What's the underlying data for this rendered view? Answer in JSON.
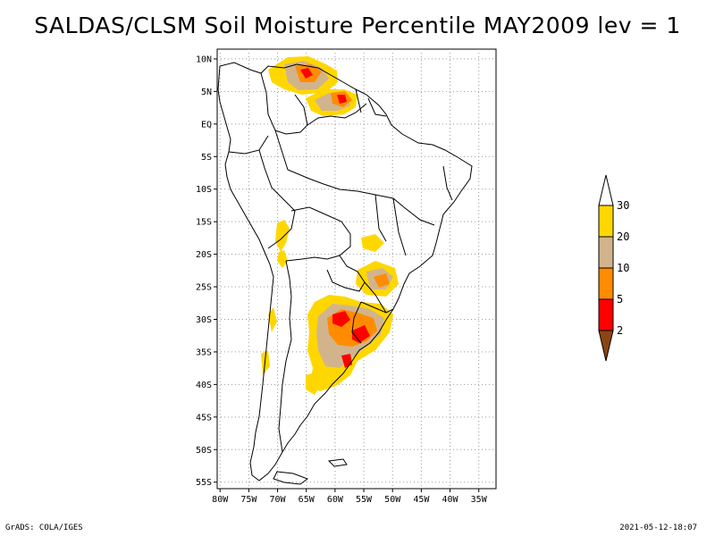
{
  "title": "SALDAS/CLSM Soil Moisture Percentile MAY2009 lev = 1",
  "footer": {
    "left": "GrADS: COLA/IGES",
    "right": "2021-05-12-18:07"
  },
  "map": {
    "lon_range": [
      -80.5,
      -32
    ],
    "lat_range": [
      -56,
      11.5
    ],
    "lat_labels": [
      {
        "lat": 10,
        "label": "10N"
      },
      {
        "lat": 5,
        "label": "5N"
      },
      {
        "lat": 0,
        "label": "EQ"
      },
      {
        "lat": -5,
        "label": "5S"
      },
      {
        "lat": -10,
        "label": "10S"
      },
      {
        "lat": -15,
        "label": "15S"
      },
      {
        "lat": -20,
        "label": "20S"
      },
      {
        "lat": -25,
        "label": "25S"
      },
      {
        "lat": -30,
        "label": "30S"
      },
      {
        "lat": -35,
        "label": "35S"
      },
      {
        "lat": -40,
        "label": "40S"
      },
      {
        "lat": -45,
        "label": "45S"
      },
      {
        "lat": -50,
        "label": "50S"
      },
      {
        "lat": -55,
        "label": "55S"
      }
    ],
    "lon_labels": [
      {
        "lon": -80,
        "label": "80W"
      },
      {
        "lon": -75,
        "label": "75W"
      },
      {
        "lon": -70,
        "label": "70W"
      },
      {
        "lon": -65,
        "label": "65W"
      },
      {
        "lon": -60,
        "label": "60W"
      },
      {
        "lon": -55,
        "label": "55W"
      },
      {
        "lon": -50,
        "label": "50W"
      },
      {
        "lon": -45,
        "label": "45W"
      },
      {
        "lon": -40,
        "label": "40W"
      },
      {
        "lon": -35,
        "label": "35W"
      }
    ]
  },
  "colorbar": {
    "labels": [
      "30",
      "20",
      "10",
      "5",
      "2"
    ],
    "colors": [
      "#ffd700",
      "#d2b48c",
      "#ff8c00",
      "#ff0000",
      "#8b4513"
    ]
  },
  "colors": {
    "below_2": "#8b4513",
    "p2_5": "#ff0000",
    "p5_10": "#ff8c00",
    "p10_20": "#d2b48c",
    "p20_30": "#ffd700",
    "gridline": "#999999"
  }
}
